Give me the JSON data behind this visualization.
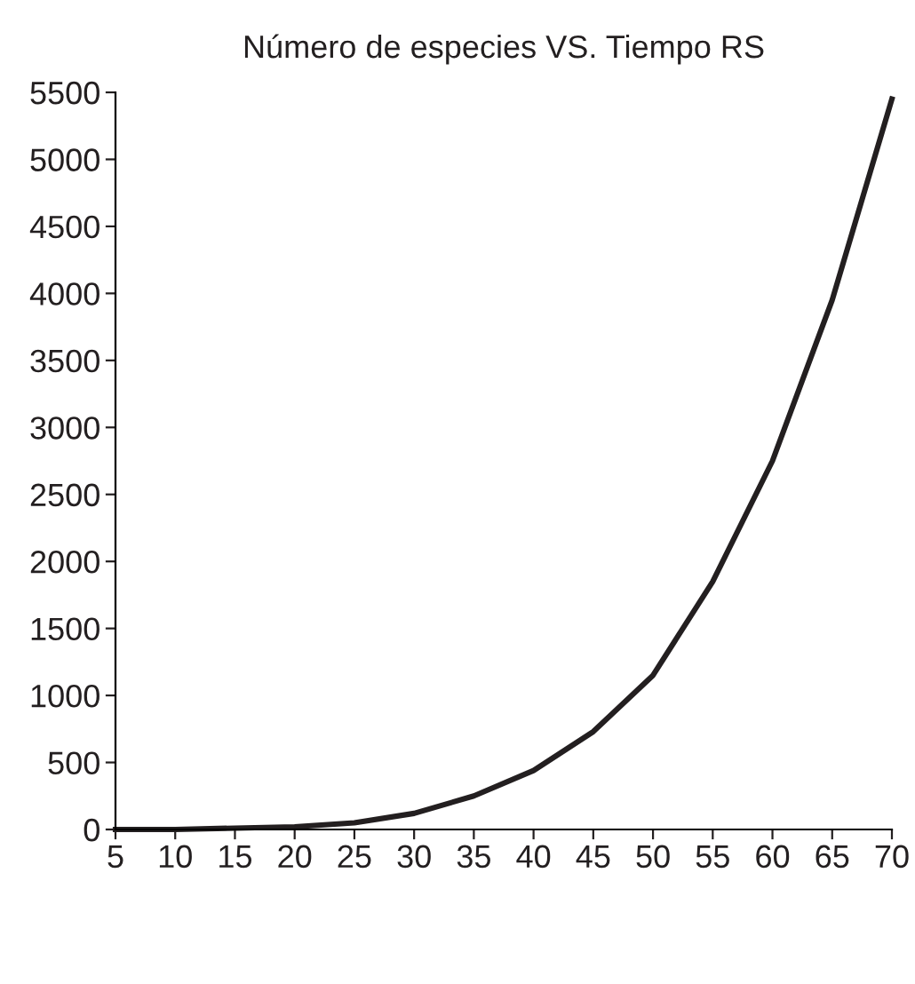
{
  "chart_data": {
    "type": "line",
    "title": "Número de especies VS. Tiempo RS",
    "x": [
      5,
      10,
      15,
      20,
      25,
      30,
      35,
      40,
      45,
      50,
      55,
      60,
      65,
      70
    ],
    "series": [
      {
        "color": "#231f20",
        "values": [
          0,
          0,
          10,
          20,
          50,
          120,
          250,
          440,
          730,
          1150,
          1850,
          2750,
          3950,
          5450
        ]
      }
    ],
    "xlim": [
      5,
      70
    ],
    "ylim": [
      0,
      5500
    ],
    "xticks": [
      5,
      10,
      15,
      20,
      25,
      30,
      35,
      40,
      45,
      50,
      55,
      60,
      65,
      70
    ],
    "yticks": [
      0,
      500,
      1000,
      1500,
      2000,
      2500,
      3000,
      3500,
      4000,
      4500,
      5000,
      5500
    ],
    "grid": false,
    "legend": false,
    "marker": "none",
    "line_style": "solid"
  }
}
